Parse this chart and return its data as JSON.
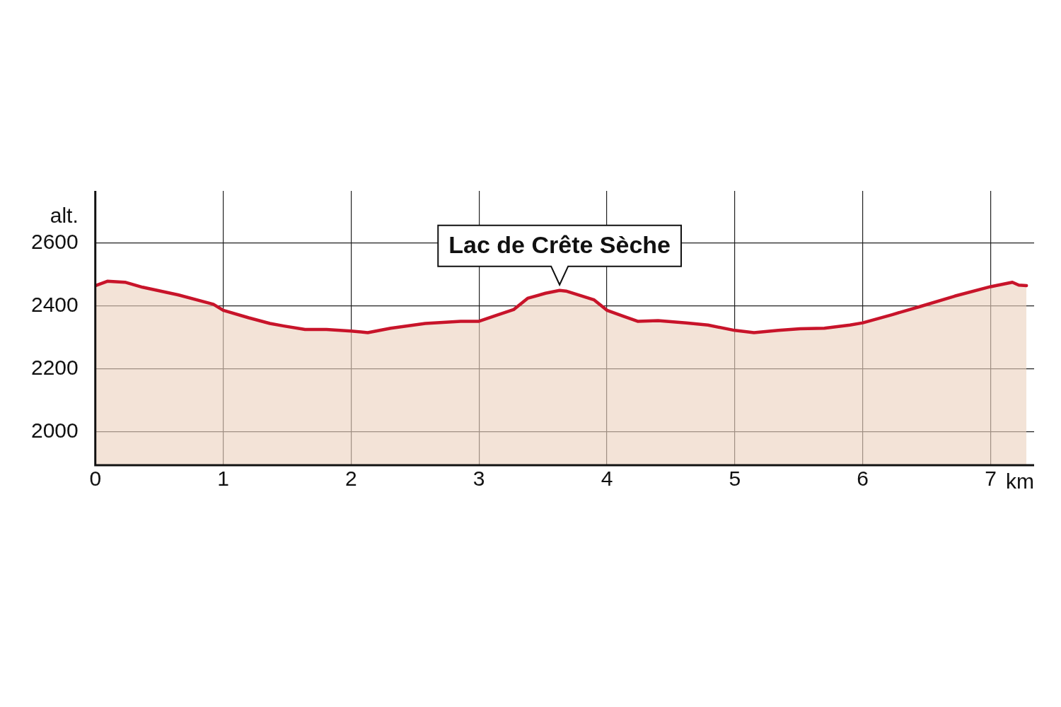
{
  "chart_data": {
    "type": "area",
    "xlabel": "km",
    "ylabel": "alt.",
    "x": [
      0,
      0.094,
      0.232,
      0.37,
      0.646,
      0.923,
      1.0,
      1.2,
      1.365,
      1.475,
      1.64,
      1.807,
      2.0,
      2.13,
      2.31,
      2.58,
      2.856,
      3.0,
      3.13,
      3.27,
      3.38,
      3.52,
      3.63,
      3.68,
      3.9,
      4.0,
      4.13,
      4.24,
      4.4,
      4.62,
      4.79,
      5.0,
      5.15,
      5.34,
      5.51,
      5.7,
      5.9,
      6.0,
      6.23,
      6.45,
      6.72,
      7.0,
      7.17,
      7.22,
      7.28
    ],
    "series": [
      {
        "color": "#c8142a",
        "values": [
          2464,
          2478,
          2475,
          2459,
          2435,
          2405,
          2386,
          2362,
          2344,
          2336,
          2325,
          2325,
          2320,
          2315,
          2329,
          2344,
          2351,
          2351,
          2369,
          2388,
          2424,
          2440,
          2449,
          2447,
          2419,
          2386,
          2367,
          2351,
          2353,
          2346,
          2339,
          2322,
          2315,
          2322,
          2327,
          2329,
          2339,
          2346,
          2372,
          2398,
          2431,
          2461,
          2475,
          2466,
          2464
        ]
      }
    ],
    "xlim": [
      0,
      7.34
    ],
    "xticks": [
      0,
      1,
      2,
      3,
      4,
      5,
      6,
      7
    ],
    "ylim": [
      1894,
      2765
    ],
    "yticks": [
      2000,
      2200,
      2400,
      2600
    ],
    "grid": true,
    "legend": false,
    "marker": "none",
    "line_style": "solid",
    "annotations": [
      {
        "text": "Lac de Crête Sèche",
        "x": 3.63,
        "y": 2449
      }
    ]
  }
}
